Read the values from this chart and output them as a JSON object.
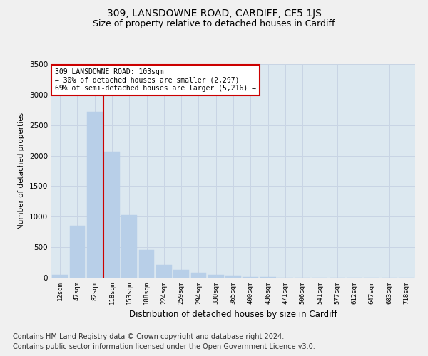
{
  "title": "309, LANSDOWNE ROAD, CARDIFF, CF5 1JS",
  "subtitle": "Size of property relative to detached houses in Cardiff",
  "xlabel": "Distribution of detached houses by size in Cardiff",
  "ylabel": "Number of detached properties",
  "categories": [
    "12sqm",
    "47sqm",
    "82sqm",
    "118sqm",
    "153sqm",
    "188sqm",
    "224sqm",
    "259sqm",
    "294sqm",
    "330sqm",
    "365sqm",
    "400sqm",
    "436sqm",
    "471sqm",
    "506sqm",
    "541sqm",
    "577sqm",
    "612sqm",
    "647sqm",
    "683sqm",
    "718sqm"
  ],
  "values": [
    50,
    850,
    2720,
    2060,
    1030,
    450,
    210,
    130,
    80,
    45,
    30,
    15,
    8,
    3,
    1,
    0,
    0,
    0,
    0,
    0,
    0
  ],
  "bar_color": "#b8cfe8",
  "bar_edge_color": "#b8cfe8",
  "vline_x": 2.5,
  "vline_color": "#cc0000",
  "annotation_text": "309 LANSDOWNE ROAD: 103sqm\n← 30% of detached houses are smaller (2,297)\n69% of semi-detached houses are larger (5,216) →",
  "annotation_box_color": "#ffffff",
  "annotation_box_edge_color": "#cc0000",
  "ylim": [
    0,
    3500
  ],
  "yticks": [
    0,
    500,
    1000,
    1500,
    2000,
    2500,
    3000,
    3500
  ],
  "grid_color": "#c8d4e4",
  "background_color": "#dce8f0",
  "fig_background": "#f0f0f0",
  "footer_line1": "Contains HM Land Registry data © Crown copyright and database right 2024.",
  "footer_line2": "Contains public sector information licensed under the Open Government Licence v3.0.",
  "title_fontsize": 10,
  "subtitle_fontsize": 9,
  "footer_fontsize": 7
}
